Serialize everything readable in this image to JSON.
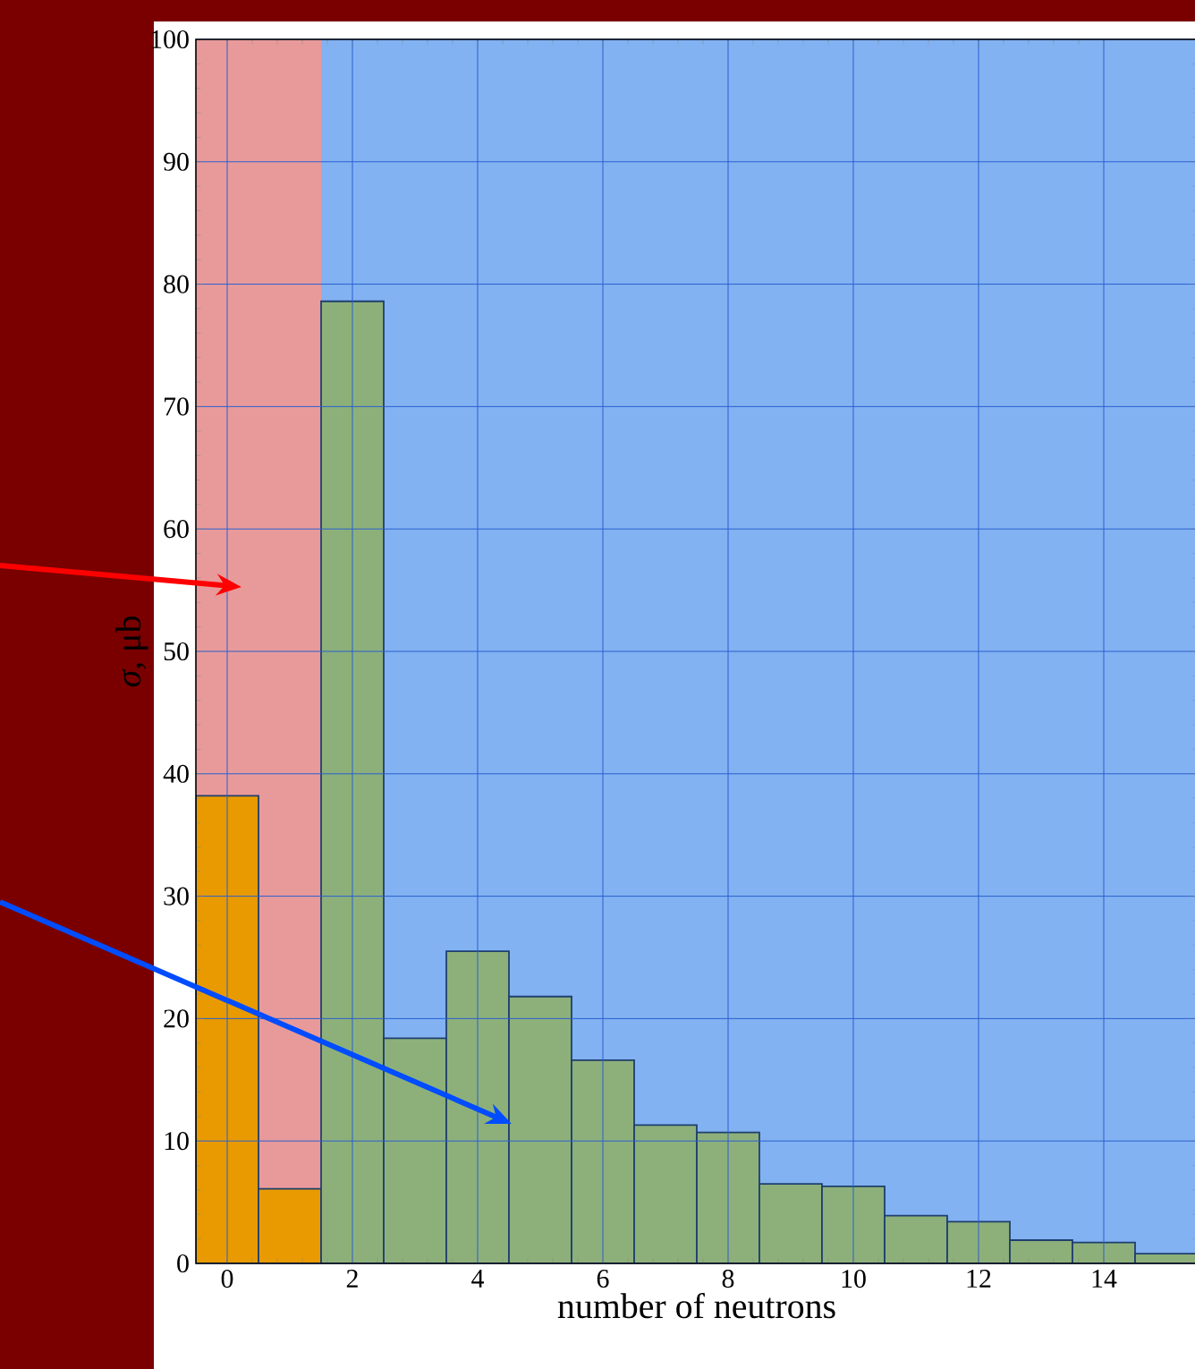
{
  "chart_data": {
    "type": "histogram",
    "xlabel": "number of neutrons",
    "ylabel": "*σ*, μb",
    "bins": [
      -0.5,
      0.5,
      1.5,
      2.5,
      3.5,
      4.5,
      5.5,
      6.5,
      7.5,
      8.5,
      9.5,
      10.5,
      11.5,
      12.5,
      13.5,
      14.5,
      15.5
    ],
    "values": [
      38.2,
      6.1,
      78.6,
      18.4,
      25.5,
      21.8,
      16.6,
      11.3,
      10.7,
      6.5,
      6.3,
      3.9,
      3.4,
      1.9,
      1.7,
      0.8
    ],
    "colors": [
      "#e89a00",
      "#e89a00",
      "#8db07a",
      "#8db07a",
      "#8db07a",
      "#8db07a",
      "#8db07a",
      "#8db07a",
      "#8db07a",
      "#8db07a",
      "#8db07a",
      "#8db07a",
      "#8db07a",
      "#8db07a",
      "#8db07a",
      "#8db07a"
    ],
    "bands": [
      {
        "axis": "x",
        "from": -0.5,
        "to": 1.5,
        "color": "#e89a9a"
      },
      {
        "axis": "x",
        "from": 1.5,
        "to": 15.5,
        "color": "#82b2f2"
      }
    ],
    "xlim": [
      -0.5,
      15.5
    ],
    "ylim": [
      0,
      100
    ],
    "xticks": [
      0,
      2,
      4,
      6,
      8,
      10,
      12,
      14
    ],
    "yticks": [
      0,
      10,
      20,
      30,
      40,
      50,
      60,
      70,
      80,
      90,
      100
    ],
    "grid": true
  }
}
